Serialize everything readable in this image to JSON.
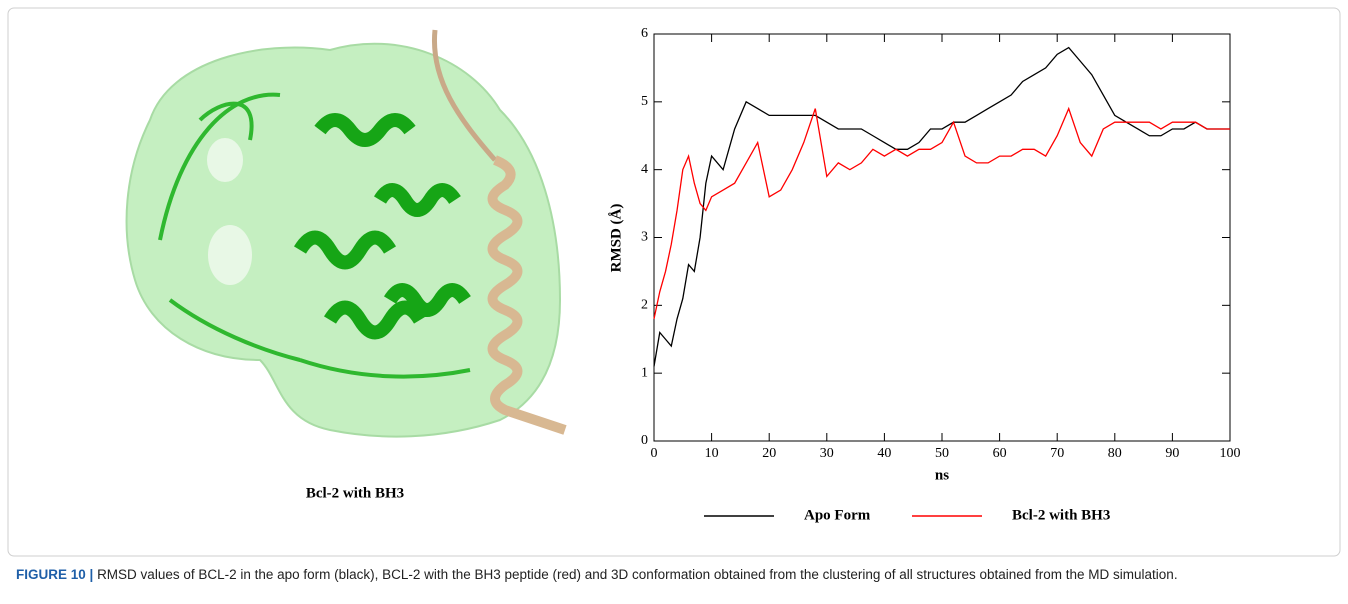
{
  "panel_label": "Bcl-2 with BH3",
  "caption": {
    "label": "FIGURE 10 |",
    "text": "RMSD values of BCL-2 in the apo form (black), BCL-2 with the BH3 peptide (red) and 3D conformation obtained from the clustering of all structures obtained from the MD simulation."
  },
  "chart_data": {
    "type": "line",
    "x_label": "ns",
    "y_label": "RMSD (Å)",
    "x": [
      0,
      1,
      2,
      3,
      4,
      5,
      6,
      7,
      8,
      9,
      10,
      12,
      14,
      16,
      18,
      20,
      22,
      24,
      26,
      28,
      30,
      32,
      34,
      36,
      38,
      40,
      42,
      44,
      46,
      48,
      50,
      52,
      54,
      56,
      58,
      60,
      62,
      64,
      66,
      68,
      70,
      72,
      74,
      76,
      78,
      80,
      82,
      84,
      86,
      88,
      90,
      92,
      94,
      96,
      98,
      100
    ],
    "series": [
      {
        "name": "Apo Form",
        "color": "#000000",
        "values": [
          1.1,
          1.6,
          1.5,
          1.4,
          1.8,
          2.1,
          2.6,
          2.5,
          3.0,
          3.8,
          4.2,
          4.0,
          4.6,
          5.0,
          4.9,
          4.8,
          4.8,
          4.8,
          4.8,
          4.8,
          4.7,
          4.6,
          4.6,
          4.6,
          4.5,
          4.4,
          4.3,
          4.3,
          4.4,
          4.6,
          4.6,
          4.7,
          4.7,
          4.8,
          4.9,
          5.0,
          5.1,
          5.3,
          5.4,
          5.5,
          5.7,
          5.8,
          5.6,
          5.4,
          5.1,
          4.8,
          4.7,
          4.6,
          4.5,
          4.5,
          4.6,
          4.6,
          4.7,
          4.6,
          4.6,
          4.6
        ]
      },
      {
        "name": "Bcl-2 with BH3",
        "color": "#ff0000",
        "values": [
          1.8,
          2.2,
          2.5,
          2.9,
          3.4,
          4.0,
          4.2,
          3.8,
          3.5,
          3.4,
          3.6,
          3.7,
          3.8,
          4.1,
          4.4,
          3.6,
          3.7,
          4.0,
          4.4,
          4.9,
          3.9,
          4.1,
          4.0,
          4.1,
          4.3,
          4.2,
          4.3,
          4.2,
          4.3,
          4.3,
          4.4,
          4.7,
          4.2,
          4.1,
          4.1,
          4.2,
          4.2,
          4.3,
          4.3,
          4.2,
          4.5,
          4.9,
          4.4,
          4.2,
          4.6,
          4.7,
          4.7,
          4.7,
          4.7,
          4.6,
          4.7,
          4.7,
          4.7,
          4.6,
          4.6,
          4.6
        ]
      }
    ],
    "xlim": [
      0,
      100
    ],
    "xticks": [
      0,
      10,
      20,
      30,
      40,
      50,
      60,
      70,
      80,
      90,
      100
    ],
    "ylim": [
      0,
      6
    ],
    "yticks": [
      0,
      1,
      2,
      3,
      4,
      5,
      6
    ],
    "legend": "bottom"
  }
}
